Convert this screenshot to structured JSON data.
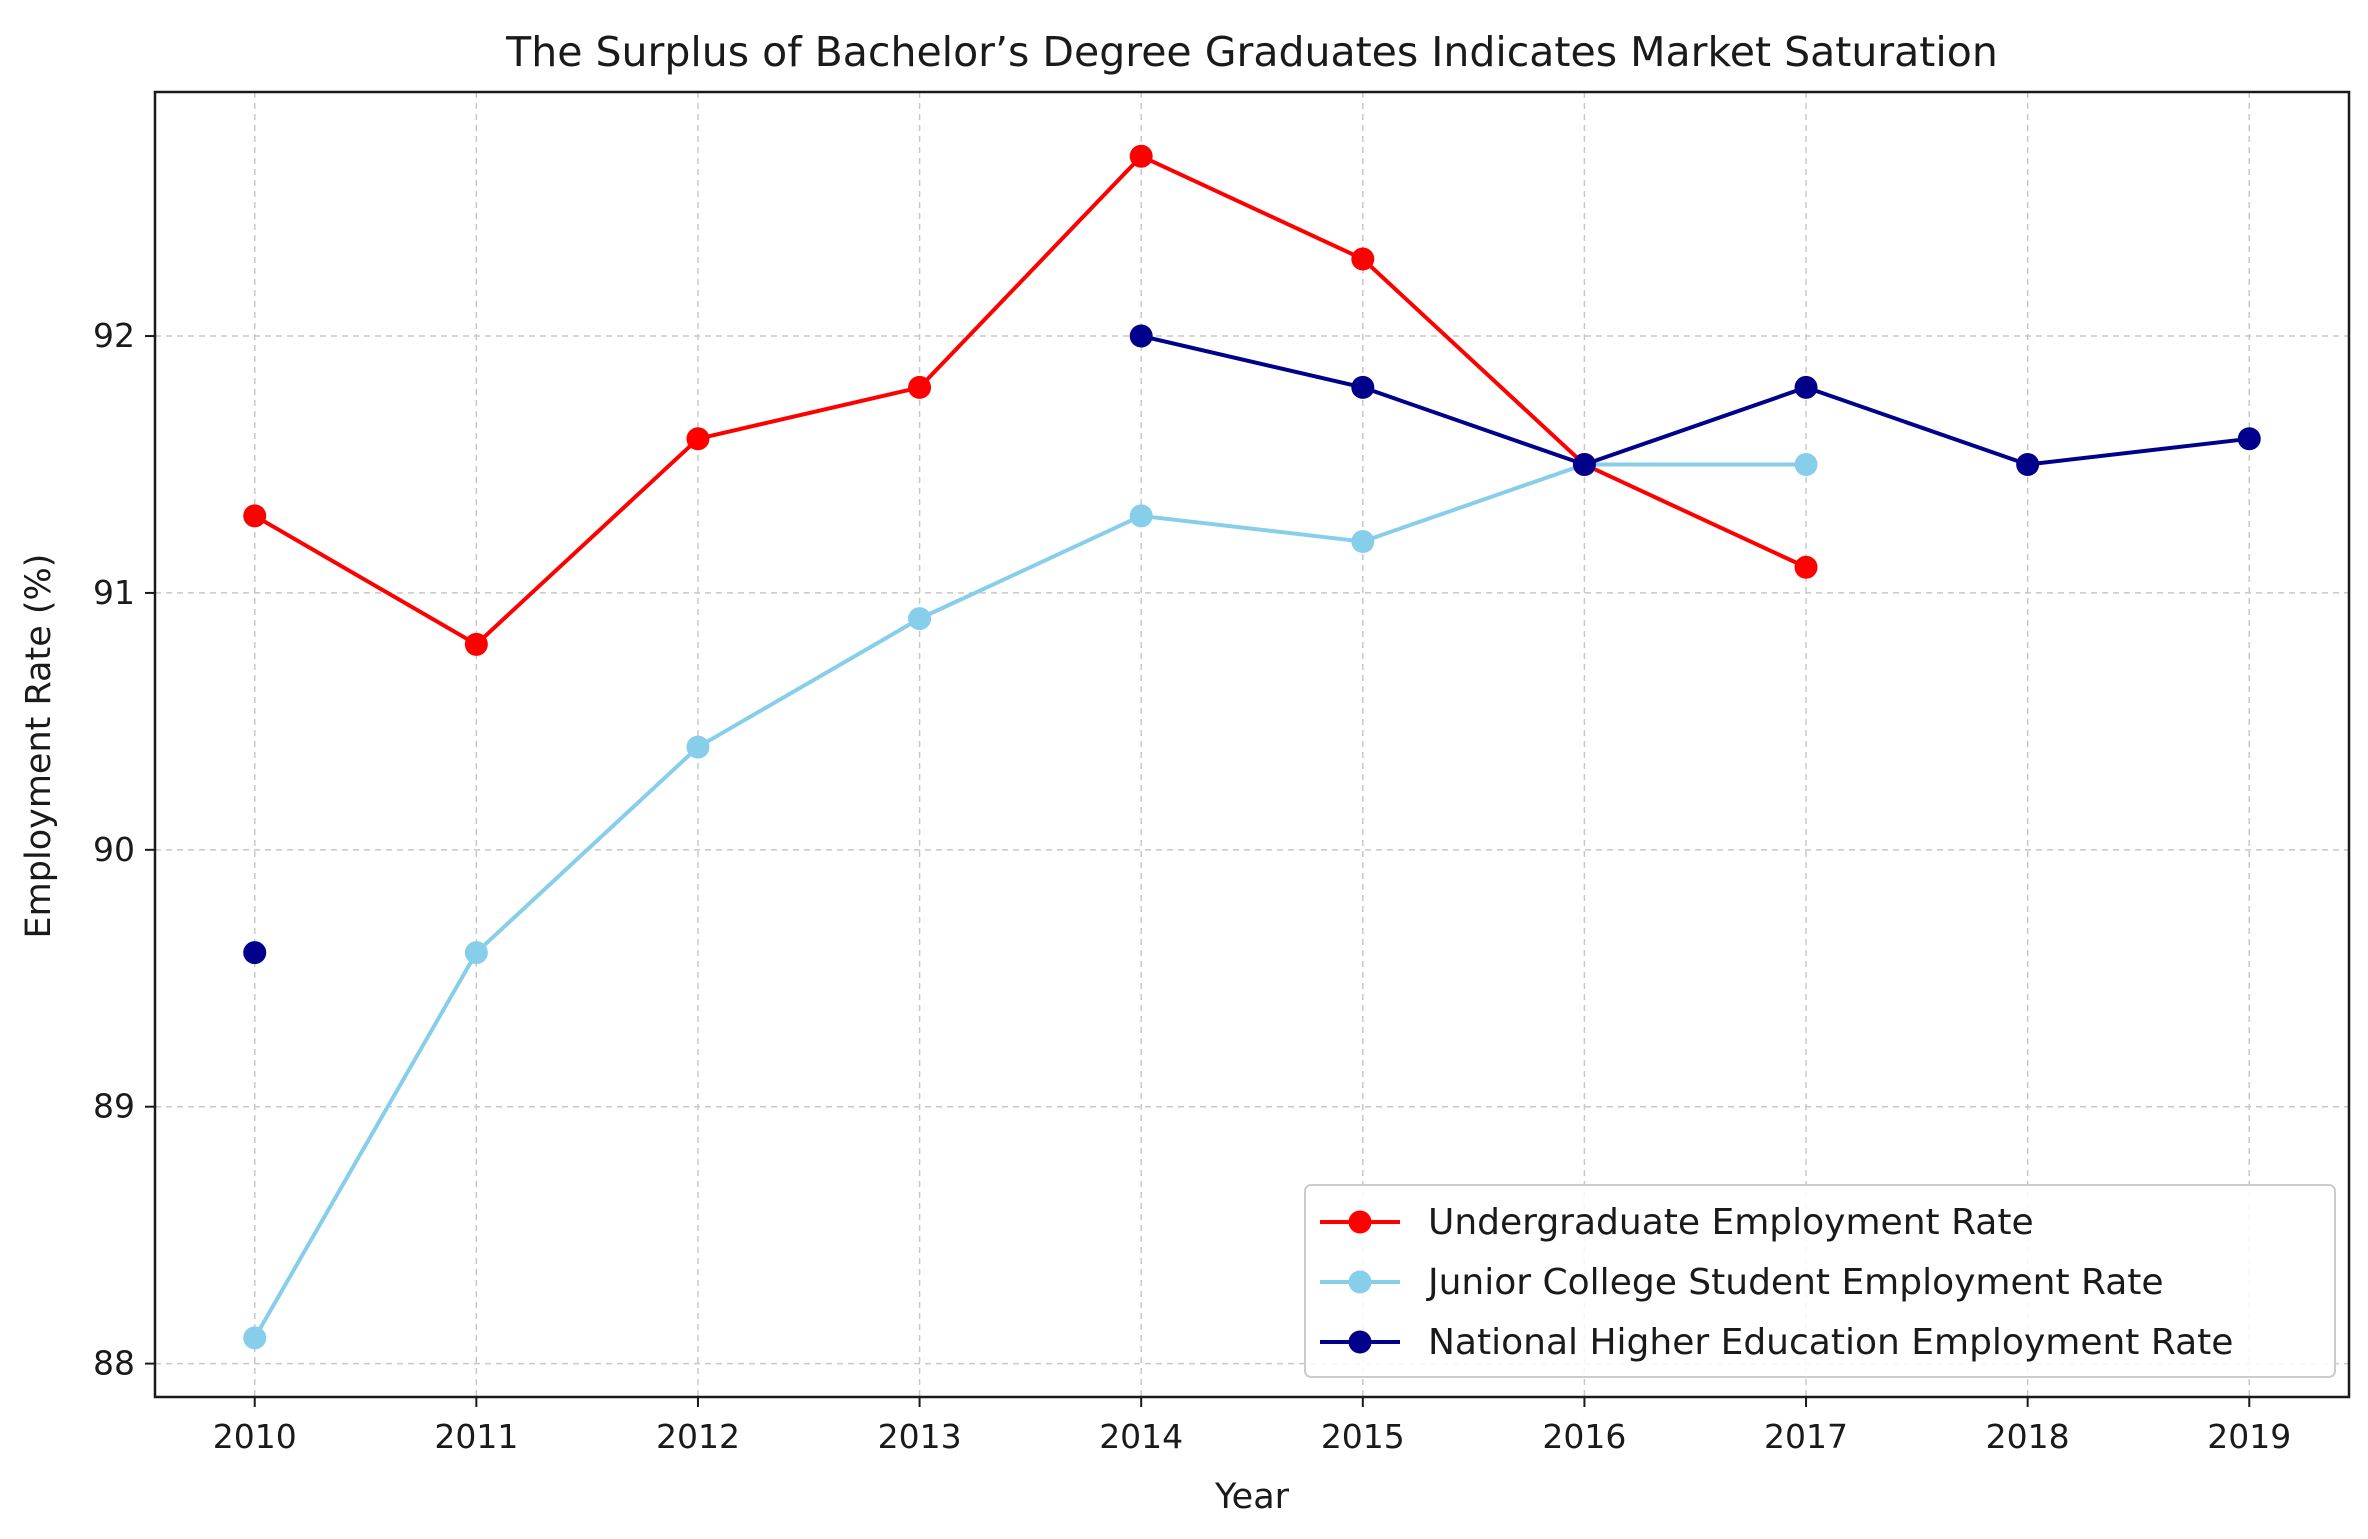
{
  "chart_data": {
    "type": "line",
    "title": "The Surplus of Bachelor’s Degree Graduates Indicates Market Saturation",
    "xlabel": "Year",
    "ylabel": "Employment Rate (%)",
    "x": [
      2010,
      2011,
      2012,
      2013,
      2014,
      2015,
      2016,
      2017,
      2018,
      2019
    ],
    "xlim": [
      2009.55,
      2019.45
    ],
    "ylim": [
      87.87,
      92.95
    ],
    "yticks": [
      88,
      89,
      90,
      91,
      92
    ],
    "grid": true,
    "legend_position": "lower-right",
    "series": [
      {
        "name": "Undergraduate Employment Rate",
        "color": "#ff0000",
        "values": [
          91.3,
          90.8,
          91.6,
          91.8,
          92.7,
          92.3,
          91.5,
          91.1,
          null,
          null
        ]
      },
      {
        "name": "Junior College Student Employment Rate",
        "color": "#87ceeb",
        "values": [
          88.1,
          89.6,
          90.4,
          90.9,
          91.3,
          91.2,
          91.5,
          91.5,
          null,
          null
        ]
      },
      {
        "name": "National Higher Education Employment Rate",
        "color": "#00008b",
        "values": [
          89.6,
          null,
          null,
          null,
          92.0,
          91.8,
          91.5,
          91.8,
          91.5,
          91.6
        ]
      }
    ]
  }
}
